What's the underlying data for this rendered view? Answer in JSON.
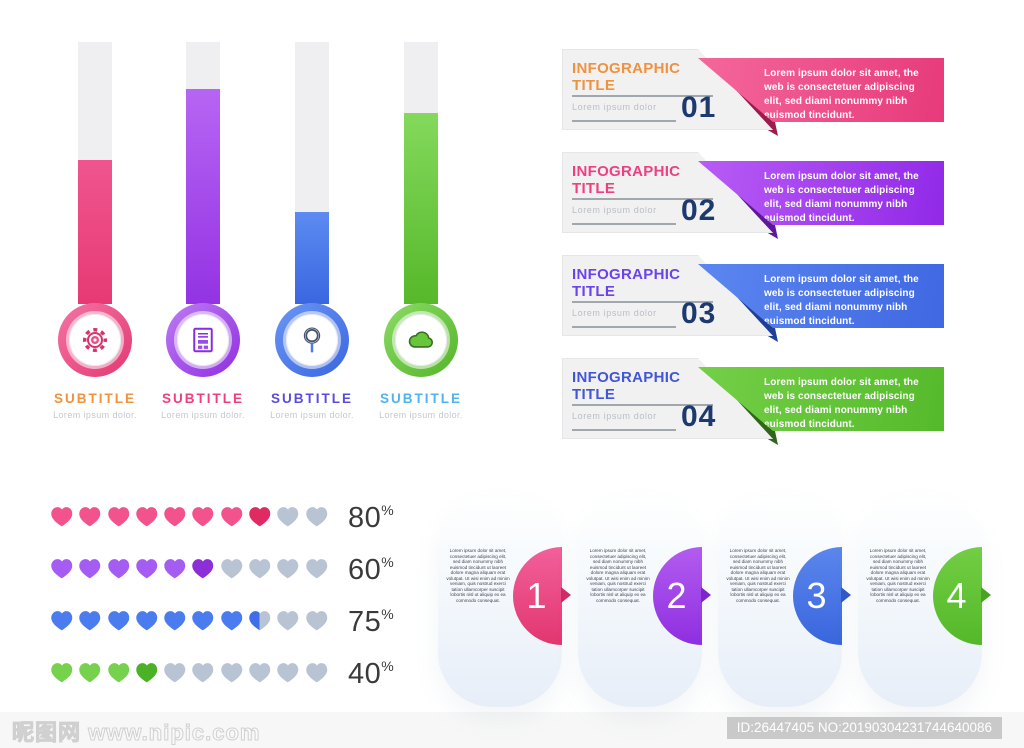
{
  "thermometers": {
    "items": [
      {
        "subtitle": "SUBTITLE",
        "caption": "Lorem ipsum dolor.",
        "icon": "gear-icon",
        "fill_percent": 55,
        "subtitle_color": "#f0923e",
        "fill_from": "#f0558e",
        "fill_to": "#e73a74",
        "ring_from": "#f573a4",
        "ring_to": "#e23a72",
        "icon_color": "#d6336c",
        "icon_accent": "#ed4c84"
      },
      {
        "subtitle": "SUBTITLE",
        "caption": "Lorem ipsum dolor.",
        "icon": "document-icon",
        "fill_percent": 82,
        "subtitle_color": "#ee3f80",
        "fill_from": "#b765f3",
        "fill_to": "#9333e3",
        "ring_from": "#bd7bf5",
        "ring_to": "#8f2fe0",
        "icon_color": "#8a2be2",
        "icon_accent": "#9b4be8"
      },
      {
        "subtitle": "SUBTITLE",
        "caption": "Lorem ipsum dolor.",
        "icon": "magnifier-icon",
        "fill_percent": 35,
        "subtitle_color": "#5a4be0",
        "fill_from": "#5c8bf2",
        "fill_to": "#3a67e0",
        "ring_from": "#6b95f5",
        "ring_to": "#3a67e0",
        "icon_color": "#44506b",
        "icon_accent": "#4a7cf0"
      },
      {
        "subtitle": "SUBTITLE",
        "caption": "Lorem ipsum dolor.",
        "icon": "cloud-icon",
        "fill_percent": 73,
        "subtitle_color": "#4fb3f0",
        "fill_from": "#84d95c",
        "fill_to": "#56b82a",
        "ring_from": "#8bdb64",
        "ring_to": "#54b52a",
        "icon_color": "#66c73b",
        "icon_accent": "#3c6e22"
      }
    ]
  },
  "infographic_banners": {
    "items": [
      {
        "title": "INFOGRAPHIC TITLE",
        "caption": "Lorem ipsum dolor",
        "number": "01",
        "body": "Lorem ipsum dolor sit amet, the web is consectetuer adipiscing elit, sed diami nonummy nibh euismod tincidunt.",
        "title_color": "#ef9240",
        "banner_from": "#f4679b",
        "banner_to": "#e73a7a",
        "fold_color": "#9c1c4e"
      },
      {
        "title": "INFOGRAPHIC TITLE",
        "caption": "Lorem ipsum dolor",
        "number": "02",
        "body": "Lorem ipsum dolor sit amet, the web is consectetuer adipiscing elit, sed diami nonummy nibh euismod tincidunt.",
        "title_color": "#ee3f80",
        "banner_from": "#b85cf5",
        "banner_to": "#9129e8",
        "fold_color": "#5f189c"
      },
      {
        "title": "INFOGRAPHIC TITLE",
        "caption": "Lorem ipsum dolor",
        "number": "03",
        "body": "Lorem ipsum dolor sit amet, the web is consectetuer adipiscing elit, sed diami nonummy nibh euismod tincidunt.",
        "title_color": "#6a43ee",
        "banner_from": "#5c86f0",
        "banner_to": "#3f68e2",
        "fold_color": "#1f3f96"
      },
      {
        "title": "INFOGRAPHIC TITLE",
        "caption": "Lorem ipsum dolor",
        "number": "04",
        "body": "Lorem ipsum dolor sit amet, the web is consectetuer adipiscing elit, sed diami nonummy nibh euismod tincidunt.",
        "title_color": "#4156d8",
        "banner_from": "#74cf47",
        "banner_to": "#55ba2b",
        "fold_color": "#2f661a"
      }
    ],
    "number_color": "#1d3a6e"
  },
  "heart_ratings": {
    "total_hearts": 10,
    "gray_color": "#b8c3d3",
    "rows": [
      {
        "percent": "80",
        "unit": "%",
        "filled": 8,
        "half": false,
        "color": "#f2538c",
        "last_color": "#e02a62"
      },
      {
        "percent": "60",
        "unit": "%",
        "filled": 6,
        "half": false,
        "color": "#a55cf2",
        "last_color": "#8c2fd8"
      },
      {
        "percent": "75",
        "unit": "%",
        "filled": 7,
        "half": true,
        "color": "#4a7cef",
        "last_color": "#2d5fd8",
        "half_color": "#3f6fe8"
      },
      {
        "percent": "40",
        "unit": "%",
        "filled": 4,
        "half": false,
        "color": "#76d14c",
        "last_color": "#4bb228"
      }
    ]
  },
  "step_cards": {
    "items": [
      {
        "number": "1",
        "circle_from": "#f2609a",
        "circle_to": "#e23670",
        "arrow_color": "#d12a63",
        "body": "Lorem ipsum dolor sit amet, consectetuer adipiscing elit, sed diam nonummy nibh euismod tincidunt ut laoreet dolore magna aliquam erat volutpat. Ut wisi enim ad minim veniam, quis nostrud exerci tation ullamcorper suscipit lobortis nisl ut aliquip ex ea commodo consequat."
      },
      {
        "number": "2",
        "circle_from": "#b35cf0",
        "circle_to": "#8e2fe0",
        "arrow_color": "#7f24cc",
        "body": "Lorem ipsum dolor sit amet, consectetuer adipiscing elit, sed diam nonummy nibh euismod tincidunt ut laoreet dolore magna aliquam erat volutpat. Ut wisi enim ad minim veniam, quis nostrud exerci tation ullamcorper suscipit lobortis nisl ut aliquip ex ea commodo consequat."
      },
      {
        "number": "3",
        "circle_from": "#5b86ed",
        "circle_to": "#3a66dd",
        "arrow_color": "#2f57c9",
        "body": "Lorem ipsum dolor sit amet, consectetuer adipiscing elit, sed diam nonummy nibh euismod tincidunt ut laoreet dolore magna aliquam erat volutpat. Ut wisi enim ad minim veniam, quis nostrud exerci tation ullamcorper suscipit lobortis nisl ut aliquip ex ea commodo consequat."
      },
      {
        "number": "4",
        "circle_from": "#72ce44",
        "circle_to": "#54b82a",
        "arrow_color": "#49a323",
        "body": "Lorem ipsum dolor sit amet, consectetuer adipiscing elit, sed diam nonummy nibh euismod tincidunt ut laoreet dolore magna aliquam erat volutpat. Ut wisi enim ad minim veniam, quis nostrud exerci tation ullamcorper suscipit lobortis nisl ut aliquip ex ea commodo consequat."
      }
    ]
  },
  "footer": {
    "site_name": "昵图网",
    "site_url": "www.nipic.com",
    "id_label": "ID:26447405 NO:20190304231744640086"
  }
}
